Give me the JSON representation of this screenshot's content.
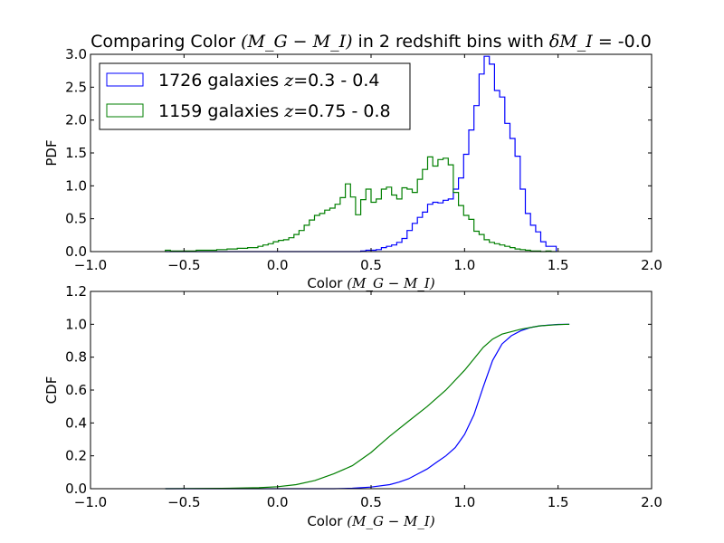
{
  "chart_data": [
    {
      "type": "histogram-step",
      "title": {
        "prefix": "Comparing Color ",
        "math": "(M_G − M_I)",
        "middle": " in 2 redshift bins with ",
        "math2": "δM_I",
        "suffix": " = -0.0"
      },
      "ylabel": "PDF",
      "xlabel": {
        "prefix": "Color ",
        "math": "(M_G − M_I)"
      },
      "xlim": [
        -1.0,
        2.0
      ],
      "ylim": [
        0,
        3.0
      ],
      "xticks": [
        "−1.0",
        "−0.5",
        "0.0",
        "0.5",
        "1.0",
        "1.5",
        "2.0"
      ],
      "yticks": [
        "0.0",
        "0.5",
        "1.0",
        "1.5",
        "2.0",
        "2.5",
        "3.0"
      ],
      "legend": {
        "placement": "upper-left",
        "entries": [
          {
            "count": "1726 galaxies",
            "math": "z",
            "range": "=0.3 - 0.4",
            "color": "#0000ff"
          },
          {
            "count": "1159 galaxies",
            "math": "z",
            "range": "=0.75 - 0.8",
            "color": "#007f00"
          }
        ]
      },
      "bin_edges_start": -0.6,
      "bin_width": 0.0275,
      "series": [
        {
          "color": "#0000ff",
          "values": [
            0,
            0,
            0,
            0,
            0,
            0,
            0,
            0,
            0,
            0,
            0,
            0,
            0,
            0,
            0,
            0,
            0,
            0,
            0,
            0,
            0,
            0,
            0,
            0,
            0,
            0,
            0,
            0,
            0,
            0,
            0,
            0,
            0,
            0,
            0,
            0,
            0,
            0,
            0.01,
            0.02,
            0.02,
            0.03,
            0.06,
            0.08,
            0.1,
            0.14,
            0.2,
            0.32,
            0.43,
            0.52,
            0.6,
            0.72,
            0.75,
            0.74,
            0.78,
            0.8,
            0.95,
            1.12,
            1.48,
            1.85,
            2.22,
            2.7,
            2.97,
            2.85,
            2.45,
            2.35,
            1.95,
            1.72,
            1.45,
            0.95,
            0.58,
            0.4,
            0.3,
            0.15,
            0.08,
            0.08
          ]
        },
        {
          "color": "#007f00",
          "values": [
            0.02,
            0.01,
            0.01,
            0.01,
            0.01,
            0.01,
            0.02,
            0.02,
            0.02,
            0.02,
            0.03,
            0.03,
            0.04,
            0.04,
            0.05,
            0.05,
            0.06,
            0.06,
            0.08,
            0.1,
            0.12,
            0.15,
            0.17,
            0.18,
            0.21,
            0.26,
            0.32,
            0.4,
            0.48,
            0.55,
            0.58,
            0.63,
            0.66,
            0.72,
            0.82,
            1.03,
            0.83,
            0.56,
            0.79,
            0.95,
            0.75,
            0.8,
            0.95,
            0.98,
            0.86,
            0.8,
            0.97,
            0.95,
            0.9,
            1.1,
            1.25,
            1.44,
            1.3,
            1.4,
            1.42,
            1.32,
            0.9,
            0.7,
            0.55,
            0.49,
            0.31,
            0.26,
            0.18,
            0.14,
            0.12,
            0.1,
            0.08,
            0.06,
            0.04,
            0.03,
            0.02,
            0.01,
            0.01,
            0.0,
            0.01,
            0.0
          ]
        }
      ]
    },
    {
      "type": "line",
      "ylabel": "CDF",
      "xlabel": {
        "prefix": "Color ",
        "math": "(M_G − M_I)"
      },
      "xlim": [
        -1.0,
        2.0
      ],
      "ylim": [
        0,
        1.2
      ],
      "xticks": [
        "−1.0",
        "−0.5",
        "0.0",
        "0.5",
        "1.0",
        "1.5",
        "2.0"
      ],
      "yticks": [
        "0.0",
        "0.2",
        "0.4",
        "0.6",
        "0.8",
        "1.0",
        "1.2"
      ],
      "series": [
        {
          "color": "#0000ff",
          "x": [
            -0.6,
            0.3,
            0.4,
            0.5,
            0.6,
            0.65,
            0.7,
            0.75,
            0.8,
            0.85,
            0.9,
            0.95,
            1.0,
            1.05,
            1.1,
            1.15,
            1.2,
            1.25,
            1.3,
            1.35,
            1.4,
            1.45,
            1.5,
            1.56
          ],
          "y": [
            0,
            0,
            0.003,
            0.01,
            0.025,
            0.04,
            0.06,
            0.09,
            0.12,
            0.16,
            0.2,
            0.25,
            0.33,
            0.45,
            0.62,
            0.78,
            0.88,
            0.93,
            0.96,
            0.98,
            0.99,
            0.995,
            0.999,
            1.0
          ]
        },
        {
          "color": "#007f00",
          "x": [
            -0.6,
            -0.3,
            -0.1,
            0.0,
            0.1,
            0.2,
            0.3,
            0.4,
            0.5,
            0.55,
            0.6,
            0.7,
            0.8,
            0.9,
            1.0,
            1.05,
            1.1,
            1.15,
            1.2,
            1.3,
            1.4,
            1.5,
            1.56
          ],
          "y": [
            0,
            0.002,
            0.006,
            0.012,
            0.025,
            0.05,
            0.09,
            0.14,
            0.22,
            0.27,
            0.32,
            0.41,
            0.5,
            0.6,
            0.72,
            0.79,
            0.86,
            0.91,
            0.94,
            0.97,
            0.99,
            0.998,
            1.0
          ]
        }
      ]
    }
  ]
}
